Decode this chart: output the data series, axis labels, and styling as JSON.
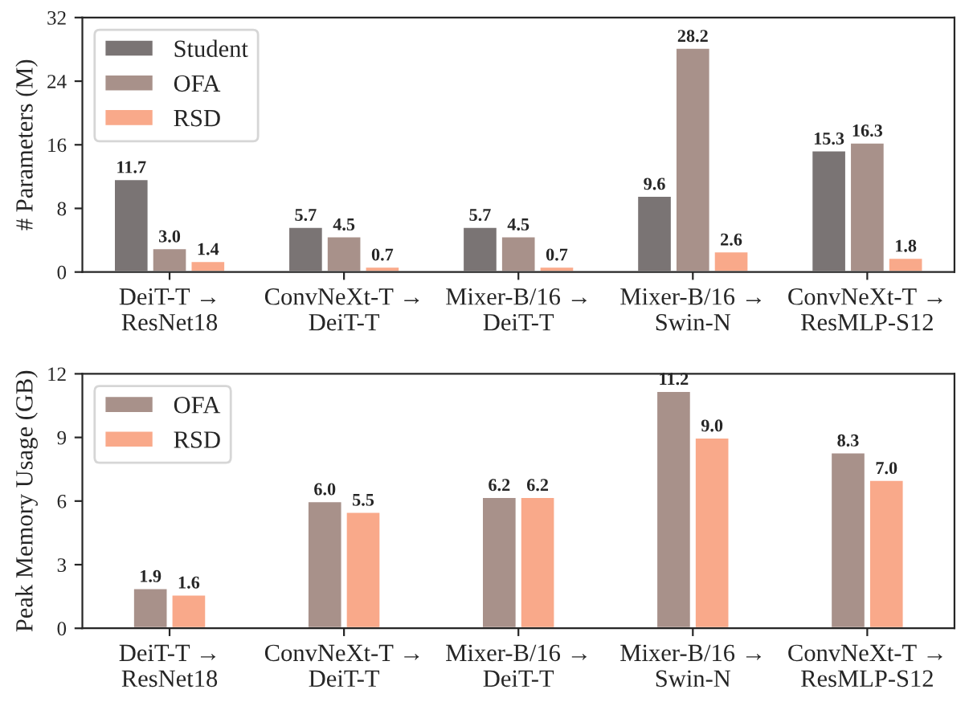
{
  "chart_data": [
    {
      "type": "bar",
      "ylabel": "# Parameters (M)",
      "categories": [
        "DeiT-T →\nResNet18",
        "ConvNeXt-T →\nDeiT-T",
        "Mixer-B/16 →\nDeiT-T",
        "Mixer-B/16 →\nSwin-N",
        "ConvNeXt-T →\nResMLP-S12"
      ],
      "series": [
        {
          "name": "Student",
          "color": "#7a7474",
          "values": [
            11.7,
            5.7,
            5.7,
            9.6,
            15.3
          ],
          "value_labels": [
            "11.7",
            "5.7",
            "5.7",
            "9.6",
            "15.3"
          ]
        },
        {
          "name": "OFA",
          "color": "#a8918a",
          "values": [
            3.0,
            4.5,
            4.5,
            28.2,
            16.3
          ],
          "value_labels": [
            "3.0",
            "4.5",
            "4.5",
            "28.2",
            "16.3"
          ]
        },
        {
          "name": "RSD",
          "color": "#f9a98a",
          "values": [
            1.4,
            0.7,
            0.7,
            2.6,
            1.8
          ],
          "value_labels": [
            "1.4",
            "0.7",
            "0.7",
            "2.6",
            "1.8"
          ]
        }
      ],
      "ylim": [
        0,
        32
      ],
      "yticks": [
        0,
        8,
        16,
        24,
        32
      ],
      "legend": "top left"
    },
    {
      "type": "bar",
      "ylabel": "Peak Memory Usage (GB)",
      "categories": [
        "DeiT-T →\nResNet18",
        "ConvNeXt-T →\nDeiT-T",
        "Mixer-B/16 →\nDeiT-T",
        "Mixer-B/16 →\nSwin-N",
        "ConvNeXt-T →\nResMLP-S12"
      ],
      "series": [
        {
          "name": "OFA",
          "color": "#a8918a",
          "values": [
            1.9,
            6.0,
            6.2,
            11.2,
            8.3
          ],
          "value_labels": [
            "1.9",
            "6.0",
            "6.2",
            "11.2",
            "8.3"
          ]
        },
        {
          "name": "RSD",
          "color": "#f9a98a",
          "values": [
            1.6,
            5.5,
            6.2,
            9.0,
            7.0
          ],
          "value_labels": [
            "1.6",
            "5.5",
            "6.2",
            "9.0",
            "7.0"
          ]
        }
      ],
      "ylim": [
        0,
        12
      ],
      "yticks": [
        0,
        3,
        6,
        9,
        12
      ],
      "legend": "top left"
    }
  ]
}
